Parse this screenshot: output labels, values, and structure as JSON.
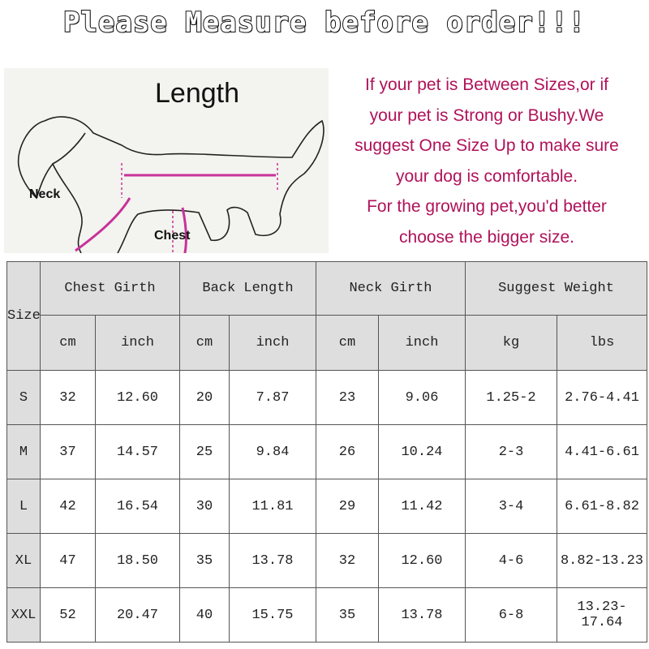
{
  "title": "Please Measure before order!!!",
  "diagram": {
    "length_label": "Length",
    "neck_label": "Neck",
    "chest_label": "Chest",
    "accent_color": "#c8329a"
  },
  "note": {
    "lines": [
      "If your pet is Between Sizes,or if",
      "your pet is Strong or Bushy.We",
      "suggest One Size Up to make sure",
      "your dog is comfortable.",
      "For the growing pet,you'd better",
      "choose the bigger size."
    ],
    "color": "#b0125a"
  },
  "table": {
    "size_header": "Size",
    "groups": [
      "Chest Girth",
      "Back Length",
      "Neck Girth",
      "Suggest Weight"
    ],
    "units": [
      "cm",
      "inch",
      "cm",
      "inch",
      "cm",
      "inch",
      "kg",
      "lbs"
    ],
    "rows": [
      {
        "size": "S",
        "values": [
          "32",
          "12.60",
          "20",
          "7.87",
          "23",
          "9.06",
          "1.25-2",
          "2.76-4.41"
        ]
      },
      {
        "size": "M",
        "values": [
          "37",
          "14.57",
          "25",
          "9.84",
          "26",
          "10.24",
          "2-3",
          "4.41-6.61"
        ]
      },
      {
        "size": "L",
        "values": [
          "42",
          "16.54",
          "30",
          "11.81",
          "29",
          "11.42",
          "3-4",
          "6.61-8.82"
        ]
      },
      {
        "size": "XL",
        "values": [
          "47",
          "18.50",
          "35",
          "13.78",
          "32",
          "12.60",
          "4-6",
          "8.82-13.23"
        ]
      },
      {
        "size": "XXL",
        "values": [
          "52",
          "20.47",
          "40",
          "15.75",
          "35",
          "13.78",
          "6-8",
          "13.23-17.64"
        ]
      }
    ]
  }
}
